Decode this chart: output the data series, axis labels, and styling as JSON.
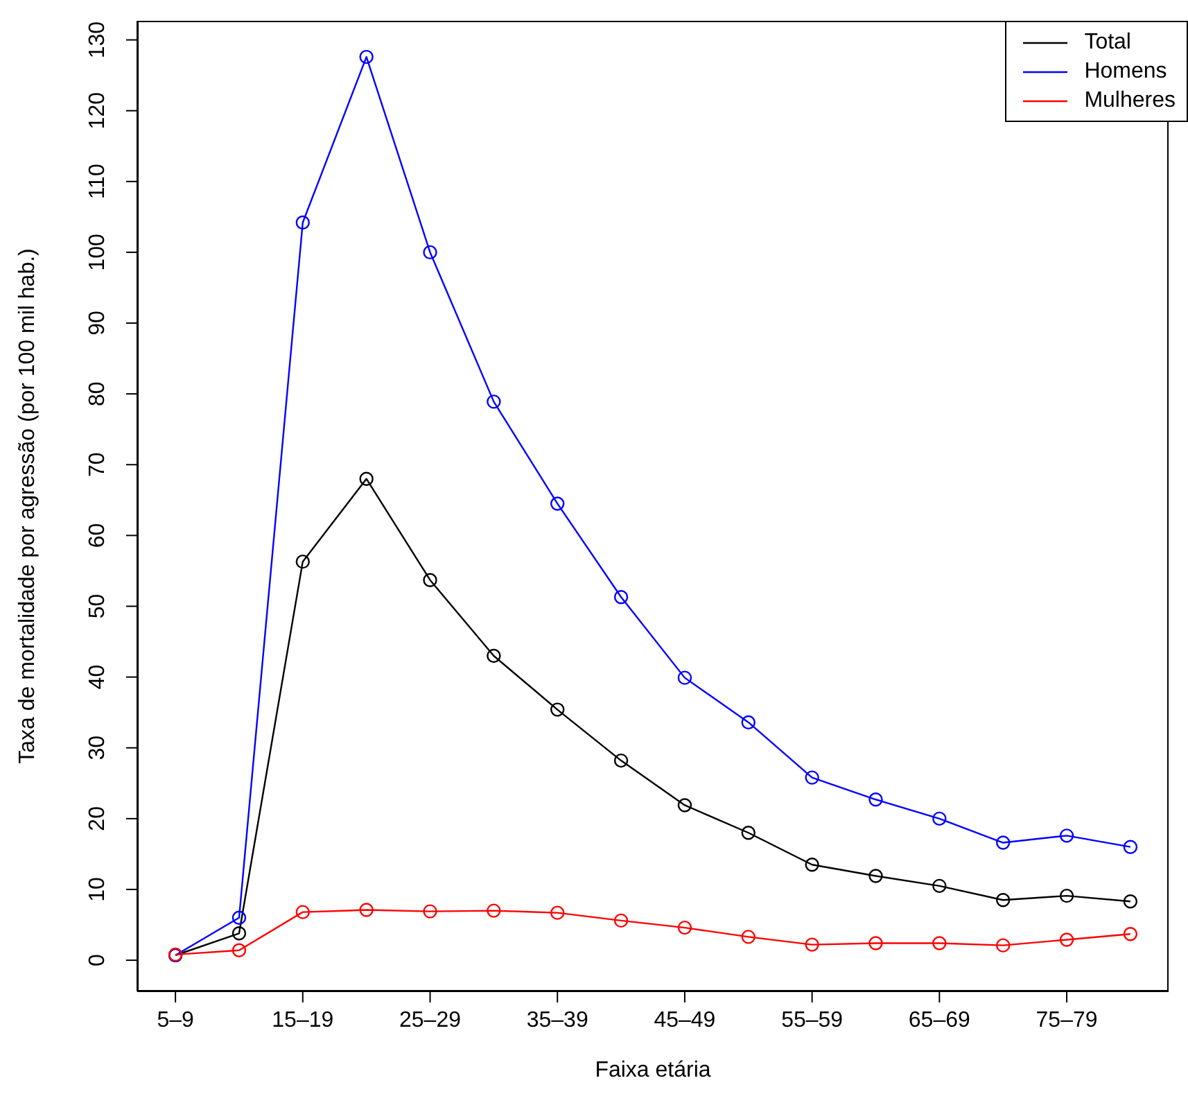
{
  "chart_data": {
    "type": "line",
    "xlabel": "Faixa etária",
    "ylabel": "Taxa de mortalidade por agressão (por 100 mil hab.)",
    "categories": [
      "5–9",
      null,
      "15–19",
      null,
      "25–29",
      null,
      "35–39",
      null,
      "45–49",
      null,
      "55–59",
      null,
      "65–69",
      null,
      "75–79",
      null
    ],
    "ylim": [
      -4.4,
      132.7
    ],
    "yticks": [
      0,
      10,
      20,
      30,
      40,
      50,
      60,
      70,
      80,
      90,
      100,
      110,
      120,
      130
    ],
    "legend": "top right",
    "marker": "circle",
    "line_style": "solid",
    "grid": false,
    "series": [
      {
        "name": "Total",
        "color": "#000000",
        "values": [
          0.7,
          3.8,
          56.3,
          68,
          53.7,
          43,
          35.4,
          28.2,
          21.9,
          18,
          13.5,
          11.9,
          10.5,
          8.5,
          9.1,
          8.3
        ]
      },
      {
        "name": "Homens",
        "color": "#0000ff",
        "values": [
          0.7,
          6,
          104.2,
          127.6,
          100,
          78.9,
          64.5,
          51.3,
          39.9,
          33.6,
          25.8,
          22.7,
          20,
          16.6,
          17.6,
          16
        ]
      },
      {
        "name": "Mulheres",
        "color": "#ff0000",
        "values": [
          0.8,
          1.4,
          6.8,
          7.1,
          6.9,
          7,
          6.7,
          5.6,
          4.6,
          3.3,
          2.2,
          2.4,
          2.4,
          2.1,
          2.9,
          3.7
        ]
      }
    ]
  }
}
